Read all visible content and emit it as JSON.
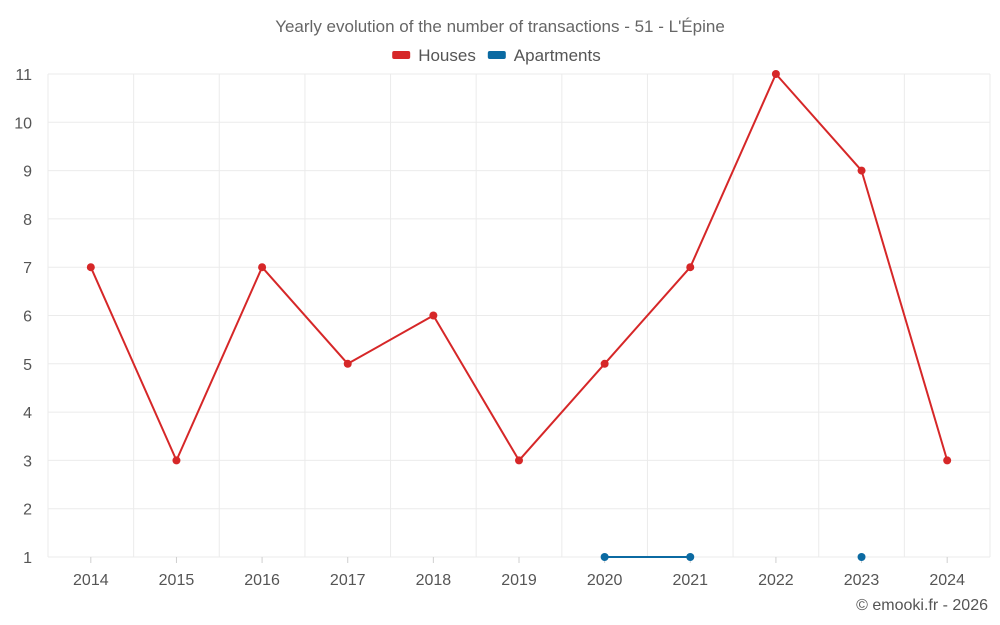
{
  "chart_data": {
    "type": "line",
    "title": "Yearly evolution of the number of transactions - 51 - L'Épine",
    "categories": [
      "2014",
      "2015",
      "2016",
      "2017",
      "2018",
      "2019",
      "2020",
      "2021",
      "2022",
      "2023",
      "2024"
    ],
    "yticks": [
      "1",
      "2",
      "3",
      "4",
      "5",
      "6",
      "7",
      "8",
      "9",
      "10",
      "11"
    ],
    "ylim": [
      1,
      11
    ],
    "xlabel": "",
    "ylabel": "",
    "grid": true,
    "legend_position": "top-center",
    "series": [
      {
        "name": "Houses",
        "color": "#d62728",
        "values": [
          7,
          3,
          7,
          5,
          6,
          3,
          5,
          7,
          11,
          9,
          3
        ]
      },
      {
        "name": "Apartments",
        "color": "#0b6aa2",
        "values": [
          null,
          null,
          null,
          null,
          null,
          null,
          1,
          1,
          null,
          1,
          null
        ]
      }
    ]
  },
  "credit": "© emooki.fr - 2026"
}
